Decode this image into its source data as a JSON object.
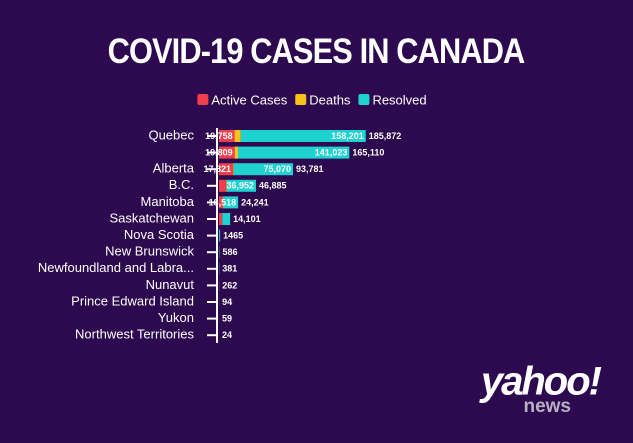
{
  "chart_data": {
    "type": "stacked-barh",
    "title": "COVID-19 CASES IN CANADA",
    "categories": [
      "Quebec",
      null,
      "Alberta",
      "B.C.",
      "Manitoba",
      "Saskatchewan",
      "Nova Scotia",
      "New Brunswick",
      "Newfoundland and Labra...",
      "Nunavut",
      "Prince Edward Island",
      "Yukon",
      "Northwest Territories"
    ],
    "series": [
      {
        "name": "Active Cases",
        "color": "#f03e4c",
        "values": [
          19758,
          19809,
          17821,
          9000,
          5200,
          4000,
          30,
          200,
          30,
          180,
          26,
          17,
          9
        ],
        "value_labels": [
          "19,758",
          "19,809",
          "17,821",
          null,
          null,
          null,
          null,
          null,
          null,
          null,
          null,
          null,
          null
        ]
      },
      {
        "name": "Deaths",
        "color": "#f6c21c",
        "values": [
          7913,
          4278,
          890,
          933,
          523,
          100,
          65,
          7,
          4,
          0,
          0,
          1,
          0
        ],
        "value_labels": [
          null,
          null,
          null,
          null,
          null,
          null,
          null,
          null,
          null,
          null,
          null,
          null,
          null
        ]
      },
      {
        "name": "Resolved",
        "color": "#1ed2d2",
        "values": [
          158201,
          141023,
          75070,
          36952,
          18518,
          10001,
          1370,
          379,
          347,
          82,
          68,
          41,
          15
        ],
        "value_labels": [
          "158,201",
          "141,023",
          "75,070",
          "36,952",
          "18,518",
          null,
          null,
          null,
          null,
          null,
          null,
          null,
          null
        ]
      }
    ],
    "totals": [
      185872,
      165110,
      93781,
      46885,
      24241,
      14101,
      1465,
      586,
      381,
      262,
      94,
      59,
      24
    ],
    "total_labels": [
      "185,872",
      "165,110",
      "93,781",
      "46,885",
      "24,241",
      "14,101",
      "1465",
      "586",
      "381",
      "262",
      "94",
      "59",
      "24"
    ],
    "xlim": [
      0,
      190000
    ],
    "legend": "top"
  },
  "brand": {
    "logo": "yahoo!",
    "sub": "news"
  }
}
